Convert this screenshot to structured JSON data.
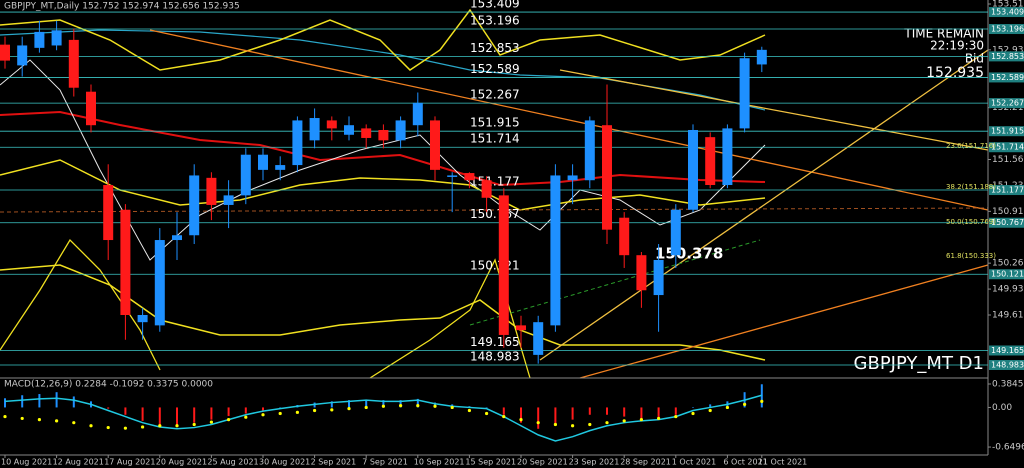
{
  "chart_data": {
    "type": "candlestick",
    "title": "GBPJPY_MT,Daily  152.752 152.974 152.656 152.935",
    "symbol_label": "GBPJPY_MT D1",
    "timer": {
      "caption": "TIME REMAIN",
      "time": "22:19:30",
      "bid_caption": "Bid",
      "bid": "152.935"
    },
    "up_color": "#1e90ff",
    "down_color": "#ff1a1a",
    "level_color": "#3cc8c8",
    "categories": [
      "10 Aug 2021",
      null,
      null,
      "12 Aug 2021",
      null,
      null,
      "17 Aug 2021",
      null,
      null,
      "20 Aug 2021",
      null,
      null,
      "25 Aug 2021",
      null,
      null,
      "30 Aug 2021",
      null,
      null,
      "2 Sep 2021",
      null,
      null,
      "7 Sep 2021",
      null,
      null,
      "10 Sep 2021",
      null,
      null,
      "15 Sep 2021",
      null,
      null,
      "20 Sep 2021",
      null,
      null,
      "23 Sep 2021",
      null,
      null,
      "28 Sep 2021",
      null,
      null,
      "1 Oct 2021",
      null,
      null,
      "6 Oct 2021",
      null,
      "11 Oct 2021"
    ],
    "open": [
      153.0,
      152.74,
      152.96,
      152.99,
      153.06,
      152.41,
      151.24,
      150.93,
      149.52,
      149.48,
      150.55,
      150.61,
      151.33,
      150.99,
      151.11,
      151.43,
      151.43,
      151.49,
      151.8,
      152.05,
      151.87,
      151.95,
      151.93,
      151.8,
      151.99,
      152.05,
      151.36,
      151.39,
      151.3,
      151.11,
      149.48,
      149.11,
      149.48,
      151.3,
      151.3,
      151.99,
      150.83,
      150.36,
      149.86,
      150.36,
      150.93,
      151.84,
      151.24,
      151.95,
      152.752
    ],
    "high": [
      153.1,
      153.1,
      153.3,
      153.3,
      153.2,
      152.5,
      151.5,
      151.0,
      149.7,
      150.7,
      150.9,
      151.5,
      151.4,
      151.3,
      151.7,
      151.7,
      151.6,
      152.1,
      152.2,
      152.1,
      152.1,
      152.0,
      152.0,
      152.1,
      152.4,
      152.1,
      151.4,
      151.4,
      151.35,
      151.2,
      149.6,
      149.6,
      151.5,
      151.5,
      152.1,
      152.5,
      150.9,
      150.4,
      150.5,
      151.0,
      152.0,
      151.9,
      152.0,
      152.9,
      152.974
    ],
    "low": [
      152.7,
      152.6,
      152.9,
      152.93,
      152.35,
      151.9,
      150.3,
      149.3,
      149.3,
      149.4,
      150.3,
      150.5,
      150.8,
      150.7,
      151.0,
      151.3,
      151.3,
      151.4,
      151.7,
      151.8,
      151.8,
      151.7,
      151.7,
      151.7,
      151.85,
      151.3,
      150.9,
      151.2,
      150.9,
      149.2,
      149.2,
      149.0,
      149.4,
      151.0,
      151.2,
      150.5,
      150.2,
      149.7,
      149.4,
      150.2,
      150.9,
      151.2,
      151.2,
      151.9,
      152.656
    ],
    "close": [
      152.8,
      152.99,
      153.16,
      153.18,
      152.46,
      151.99,
      150.55,
      149.61,
      149.61,
      150.55,
      150.61,
      151.36,
      150.99,
      151.11,
      151.62,
      151.62,
      151.49,
      152.05,
      152.08,
      151.95,
      151.99,
      151.83,
      151.8,
      152.05,
      152.27,
      151.43,
      151.36,
      151.3,
      151.08,
      149.36,
      149.42,
      149.52,
      151.36,
      151.36,
      152.05,
      150.68,
      150.36,
      149.92,
      150.3,
      150.93,
      151.93,
      151.24,
      151.95,
      152.83,
      152.935
    ],
    "ylim": [
      148.82,
      153.56
    ],
    "yticks": [
      {
        "value": 153.51,
        "label": "153.510"
      },
      152.935,
      {
        "value": 152.21,
        "label": "152.210"
      },
      {
        "value": 151.56,
        "label": "151.560"
      },
      151.235,
      {
        "value": 150.91,
        "label": "150.910"
      },
      {
        "value": 150.26,
        "label": "150.260"
      },
      149.935,
      {
        "value": 149.61,
        "label": "149.610"
      }
    ],
    "levels": [
      153.409,
      153.196,
      152.853,
      152.589,
      152.267,
      151.915,
      151.714,
      151.177,
      150.767,
      150.121,
      149.165,
      148.983
    ],
    "annotations": [
      {
        "text": "150.378",
        "value": 150.378
      }
    ],
    "fibo_labels": [
      "23.6(151.716)",
      "38.2(151.188)",
      "50.0(150.769)",
      "61.8(150.333)"
    ],
    "macd": {
      "label": "MACD(12,26,9) 0.2284 -0.1092 0.3375 0.0000",
      "ylim": [
        -0.78,
        0.45
      ],
      "yticks": [
        0.3845,
        {
          "value": 0,
          "label": "0.00"
        },
        -0.6496
      ],
      "histogram": [
        0.15,
        0.2,
        0.22,
        0.25,
        0.18,
        0.1,
        -0.02,
        -0.12,
        -0.22,
        -0.28,
        -0.3,
        -0.25,
        -0.2,
        -0.14,
        -0.1,
        -0.05,
        0.0,
        0.04,
        0.08,
        0.1,
        0.12,
        0.13,
        0.12,
        0.12,
        0.14,
        0.08,
        0.05,
        0.02,
        0.0,
        -0.12,
        -0.25,
        -0.35,
        -0.3,
        -0.2,
        -0.12,
        -0.12,
        -0.15,
        -0.2,
        -0.18,
        -0.12,
        0.0,
        0.05,
        0.1,
        0.25,
        0.38
      ],
      "line": [
        0.1,
        0.12,
        0.14,
        0.15,
        0.12,
        0.05,
        -0.05,
        -0.15,
        -0.25,
        -0.32,
        -0.35,
        -0.33,
        -0.28,
        -0.2,
        -0.12,
        -0.06,
        -0.02,
        0.02,
        0.05,
        0.08,
        0.1,
        0.12,
        0.1,
        0.1,
        0.12,
        0.06,
        0.02,
        0.0,
        -0.02,
        -0.15,
        -0.3,
        -0.45,
        -0.55,
        -0.48,
        -0.38,
        -0.3,
        -0.25,
        -0.22,
        -0.2,
        -0.15,
        -0.05,
        0.0,
        0.05,
        0.12,
        0.2
      ],
      "signal": [
        -0.15,
        -0.18,
        -0.2,
        -0.22,
        -0.25,
        -0.3,
        -0.33,
        -0.34,
        -0.32,
        -0.3,
        -0.3,
        -0.28,
        -0.24,
        -0.2,
        -0.16,
        -0.12,
        -0.1,
        -0.08,
        -0.05,
        -0.04,
        -0.02,
        0.0,
        0.02,
        0.03,
        0.03,
        0.02,
        0.0,
        -0.05,
        -0.1,
        -0.15,
        -0.2,
        -0.25,
        -0.28,
        -0.3,
        -0.28,
        -0.25,
        -0.22,
        -0.2,
        -0.18,
        -0.15,
        -0.1,
        -0.05,
        0.0,
        0.05,
        0.1
      ],
      "line_color": "#20c8e0",
      "signal_color": "#ffff00"
    }
  }
}
